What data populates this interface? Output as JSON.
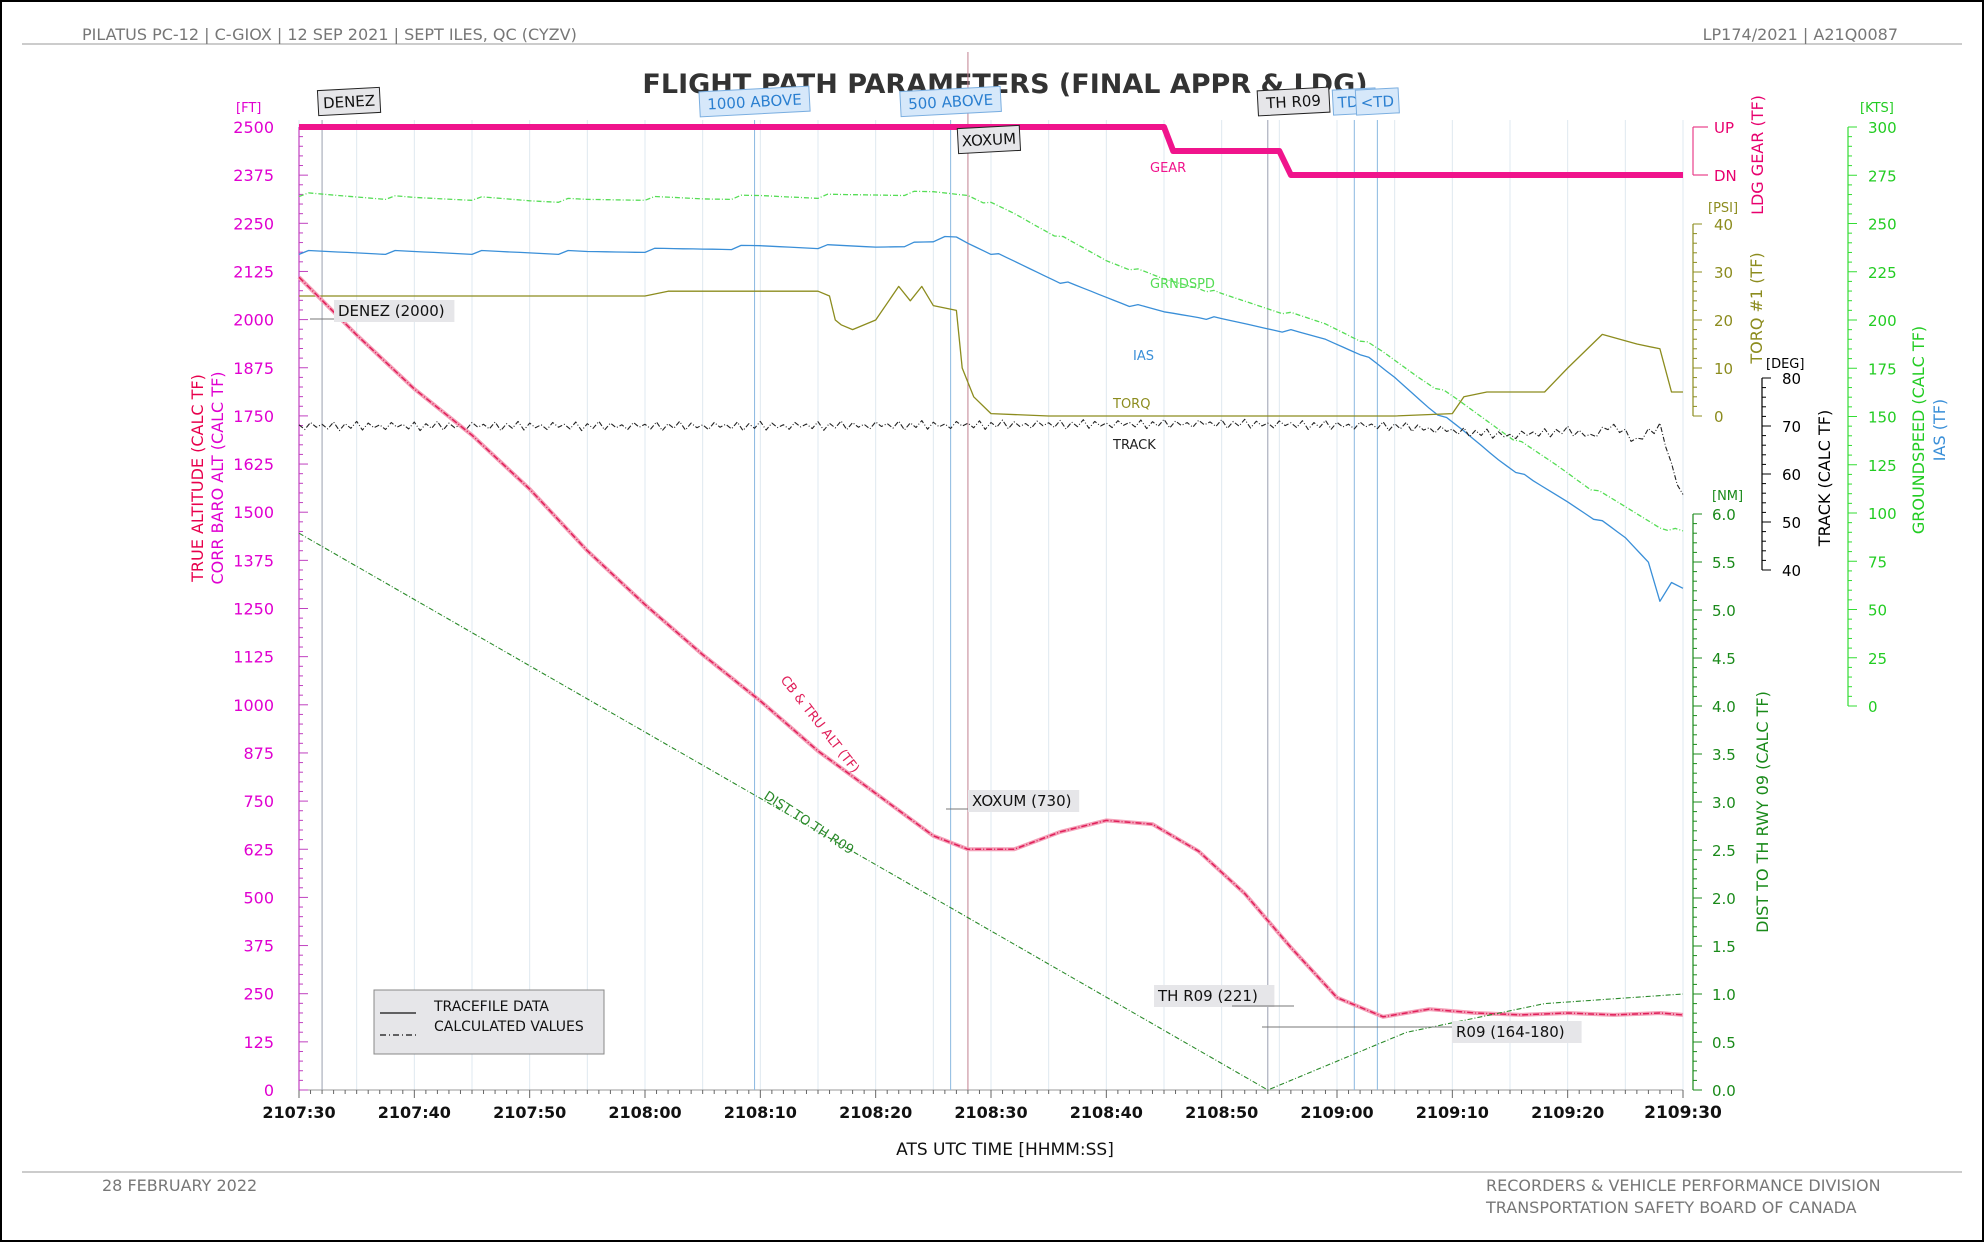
{
  "header": {
    "left": "PILATUS PC-12 | C-GIOX | 12 SEP 2021 | SEPT ILES, QC (CYZV)",
    "right": "LP174/2021 | A21Q0087"
  },
  "footer": {
    "date": "28 FEBRUARY 2022",
    "division": "RECORDERS & VEHICLE PERFORMANCE DIVISION",
    "agency": "TRANSPORTATION SAFETY BOARD OF CANADA"
  },
  "legend": {
    "tracefile": "TRACEFILE DATA",
    "calculated": "CALCULATED VALUES"
  },
  "chart_data": {
    "type": "line",
    "title": "FLIGHT PATH PARAMETERS (FINAL APPR & LDG)",
    "xlabel": "ATS UTC TIME [HHMM:SS]",
    "x_range_seconds": [
      0,
      120
    ],
    "x_ticks": [
      "2107:30",
      "2107:40",
      "2107:50",
      "2108:00",
      "2108:10",
      "2108:20",
      "2108:30",
      "2108:40",
      "2108:50",
      "2109:00",
      "2109:10",
      "2109:20",
      "2109:30"
    ],
    "axes": {
      "altitude": {
        "unit": "[FT]",
        "label1": "TRUE ALTITUDE (CALC TF)",
        "label2": "CORR BARO ALT (CALC TF)",
        "range": [
          0,
          2500
        ],
        "color": "#e8008a",
        "ticks": [
          "0",
          "125",
          "250",
          "375",
          "500",
          "625",
          "750",
          "875",
          "1000",
          "1125",
          "1250",
          "1375",
          "1500",
          "1625",
          "1750",
          "1875",
          "2000",
          "2125",
          "2250",
          "2375",
          "2500"
        ]
      },
      "gear": {
        "label": "LDG GEAR (TF)",
        "up": "UP",
        "dn": "DN",
        "color": "#e8006e"
      },
      "torque": {
        "unit": "[PSI]",
        "label": "TORQ #1 (TF)",
        "range": [
          0,
          40
        ],
        "color": "#8c8c1e",
        "ticks": [
          "0",
          "10",
          "20",
          "30",
          "40"
        ]
      },
      "track": {
        "unit": "[DEG]",
        "label": "TRACK (CALC TF)",
        "range": [
          40,
          80
        ],
        "color": "#000000",
        "ticks": [
          "40",
          "50",
          "60",
          "70",
          "80"
        ]
      },
      "distance": {
        "unit": "[NM]",
        "label": "DIST TO TH RWY 09 (CALC TF)",
        "range": [
          0,
          6
        ],
        "color": "#1a8a1a",
        "ticks": [
          "0.0",
          "0.5",
          "1.0",
          "1.5",
          "2.0",
          "2.5",
          "3.0",
          "3.5",
          "4.0",
          "4.5",
          "5.0",
          "5.5",
          "6.0"
        ]
      },
      "speed": {
        "unit": "[KTS]",
        "label1": "GROUNDSPEED (CALC TF)",
        "label2": "IAS (TF)",
        "range": [
          0,
          300
        ],
        "color": "#33dd33",
        "ticks": [
          "0",
          "25",
          "50",
          "75",
          "100",
          "125",
          "150",
          "175",
          "200",
          "225",
          "250",
          "275",
          "300"
        ]
      }
    },
    "events": [
      {
        "t": 2,
        "label": "DENEZ",
        "style": "gray",
        "row": 1
      },
      {
        "t": 39.5,
        "label": "1000 ABOVE",
        "style": "blue",
        "row": 1
      },
      {
        "t": 56.5,
        "label": "500 ABOVE",
        "style": "blue",
        "row": 1
      },
      {
        "t": 58,
        "label": "XOXUM",
        "style": "gray",
        "row": 2
      },
      {
        "t": 84,
        "label": "TH R09",
        "style": "gray",
        "row": 1
      },
      {
        "t": 91.5,
        "label": "TD>",
        "style": "blue",
        "row": 1
      },
      {
        "t": 93.5,
        "label": "<TD",
        "style": "blue",
        "row": 1
      }
    ],
    "annotations": [
      {
        "label": "DENEZ (2000)",
        "t": 2,
        "alt": 2000
      },
      {
        "label": "XOXUM (730)",
        "t": 58,
        "alt": 730
      },
      {
        "label": "TH R09 (221)",
        "t": 84,
        "alt": 221
      },
      {
        "label": "R09 (164-180)",
        "t": 84,
        "alt": 164
      }
    ],
    "series": [
      {
        "name": "LDG GEAR",
        "key": "gear",
        "axis": "gear",
        "color": "#f0148c",
        "width": 6,
        "dash": "",
        "label": "GEAR",
        "points": [
          [
            0,
            1
          ],
          [
            75,
            1
          ],
          [
            75.8,
            0.5
          ],
          [
            85,
            0.5
          ],
          [
            86,
            0
          ],
          [
            120,
            0
          ]
        ]
      },
      {
        "name": "GRNDSPD",
        "key": "gs",
        "axis": "speed",
        "color": "#55dd55",
        "width": 1.3,
        "dash": "5,2,1,2",
        "label": "GRNDSPD",
        "points": [
          [
            0,
            265
          ],
          [
            5,
            264
          ],
          [
            10,
            263
          ],
          [
            15,
            263
          ],
          [
            20,
            262
          ],
          [
            25,
            262
          ],
          [
            30,
            263
          ],
          [
            35,
            263
          ],
          [
            40,
            264
          ],
          [
            45,
            264
          ],
          [
            50,
            265
          ],
          [
            55,
            266
          ],
          [
            58,
            265
          ],
          [
            60,
            260
          ],
          [
            62,
            255
          ],
          [
            64,
            249
          ],
          [
            67,
            240
          ],
          [
            70,
            231
          ],
          [
            72,
            227
          ],
          [
            75,
            221
          ],
          [
            78,
            217
          ],
          [
            80,
            213
          ],
          [
            83,
            208
          ],
          [
            86,
            203
          ],
          [
            89,
            198
          ],
          [
            92,
            190
          ],
          [
            94,
            183
          ],
          [
            97,
            171
          ],
          [
            100,
            160
          ],
          [
            103,
            148
          ],
          [
            106,
            136
          ],
          [
            109,
            125
          ],
          [
            112,
            113
          ],
          [
            115,
            103
          ],
          [
            118,
            93
          ],
          [
            120,
            90
          ]
        ]
      },
      {
        "name": "IAS",
        "key": "ias",
        "axis": "speed",
        "color": "#3a8fd8",
        "width": 1.3,
        "dash": "",
        "label": "IAS",
        "points": [
          [
            0,
            235
          ],
          [
            5,
            235
          ],
          [
            10,
            235
          ],
          [
            15,
            235
          ],
          [
            20,
            235
          ],
          [
            25,
            235
          ],
          [
            30,
            236
          ],
          [
            35,
            237
          ],
          [
            40,
            238
          ],
          [
            45,
            238
          ],
          [
            50,
            238
          ],
          [
            55,
            240
          ],
          [
            56,
            243
          ],
          [
            57,
            243
          ],
          [
            58,
            240
          ],
          [
            60,
            235
          ],
          [
            62,
            230
          ],
          [
            64,
            225
          ],
          [
            66,
            220
          ],
          [
            68,
            216
          ],
          [
            70,
            212
          ],
          [
            72,
            208
          ],
          [
            75,
            204
          ],
          [
            78,
            202
          ],
          [
            80,
            200
          ],
          [
            83,
            197
          ],
          [
            86,
            194
          ],
          [
            89,
            190
          ],
          [
            92,
            183
          ],
          [
            95,
            170
          ],
          [
            98,
            155
          ],
          [
            101,
            142
          ],
          [
            104,
            128
          ],
          [
            107,
            116
          ],
          [
            110,
            106
          ],
          [
            113,
            95
          ],
          [
            115,
            87
          ],
          [
            117,
            75
          ],
          [
            118,
            55
          ],
          [
            119,
            65
          ],
          [
            120,
            60
          ]
        ]
      },
      {
        "name": "TORQ",
        "key": "torq",
        "axis": "torque",
        "color": "#8c8c1e",
        "width": 1.3,
        "dash": "",
        "label": "TORQ",
        "points": [
          [
            0,
            25
          ],
          [
            10,
            25
          ],
          [
            20,
            25
          ],
          [
            30,
            25
          ],
          [
            32,
            26
          ],
          [
            40,
            26
          ],
          [
            45,
            26
          ],
          [
            46,
            25
          ],
          [
            46.5,
            20
          ],
          [
            47,
            19
          ],
          [
            48,
            18
          ],
          [
            50,
            20
          ],
          [
            52,
            27
          ],
          [
            53,
            24
          ],
          [
            54,
            27
          ],
          [
            55,
            23
          ],
          [
            57,
            22
          ],
          [
            57.5,
            10
          ],
          [
            58.5,
            4
          ],
          [
            60,
            0.5
          ],
          [
            65,
            0
          ],
          [
            80,
            0
          ],
          [
            90,
            0
          ],
          [
            95,
            0
          ],
          [
            100,
            0.5
          ],
          [
            101,
            4
          ],
          [
            103,
            5
          ],
          [
            108,
            5
          ],
          [
            110,
            10
          ],
          [
            113,
            17
          ],
          [
            116,
            15
          ],
          [
            118,
            14
          ],
          [
            119,
            5
          ],
          [
            120,
            5
          ]
        ]
      },
      {
        "name": "TRACK",
        "key": "track",
        "axis": "track",
        "color": "#222222",
        "width": 1.1,
        "dash": "5,2,1,2",
        "label": "TRACK",
        "jitter": true,
        "points": [
          [
            0,
            70
          ],
          [
            40,
            70
          ],
          [
            80,
            70.5
          ],
          [
            95,
            70
          ],
          [
            105,
            68
          ],
          [
            110,
            69
          ],
          [
            112,
            68
          ],
          [
            114,
            70
          ],
          [
            116,
            67
          ],
          [
            118,
            70
          ],
          [
            119,
            62
          ],
          [
            120,
            55
          ]
        ]
      },
      {
        "name": "CB & TRU ALT",
        "key": "alt",
        "axis": "altitude",
        "color": "#e0205a",
        "width": 1.5,
        "dash": "6,2,1,2",
        "label": "CB & TRU ALT (TF)",
        "double": true,
        "points": [
          [
            0,
            2110
          ],
          [
            2,
            2050
          ],
          [
            5,
            1960
          ],
          [
            10,
            1820
          ],
          [
            15,
            1700
          ],
          [
            20,
            1560
          ],
          [
            25,
            1400
          ],
          [
            30,
            1260
          ],
          [
            35,
            1130
          ],
          [
            40,
            1010
          ],
          [
            45,
            880
          ],
          [
            50,
            770
          ],
          [
            55,
            660
          ],
          [
            58,
            625
          ],
          [
            62,
            625
          ],
          [
            66,
            670
          ],
          [
            70,
            700
          ],
          [
            74,
            690
          ],
          [
            78,
            620
          ],
          [
            82,
            510
          ],
          [
            86,
            370
          ],
          [
            90,
            240
          ],
          [
            94,
            190
          ],
          [
            98,
            210
          ],
          [
            102,
            200
          ],
          [
            106,
            195
          ],
          [
            110,
            200
          ],
          [
            114,
            195
          ],
          [
            118,
            200
          ],
          [
            120,
            195
          ]
        ]
      },
      {
        "name": "DIST TO TH R09",
        "key": "dist",
        "axis": "distance",
        "color": "#2a8a2a",
        "width": 1.1,
        "dash": "5,2,1,2",
        "label": "DIST TO TH R09",
        "points": [
          [
            0,
            5.8
          ],
          [
            84,
            0
          ],
          [
            96,
            0.6
          ],
          [
            108,
            0.9
          ],
          [
            120,
            1.0
          ]
        ]
      }
    ]
  }
}
